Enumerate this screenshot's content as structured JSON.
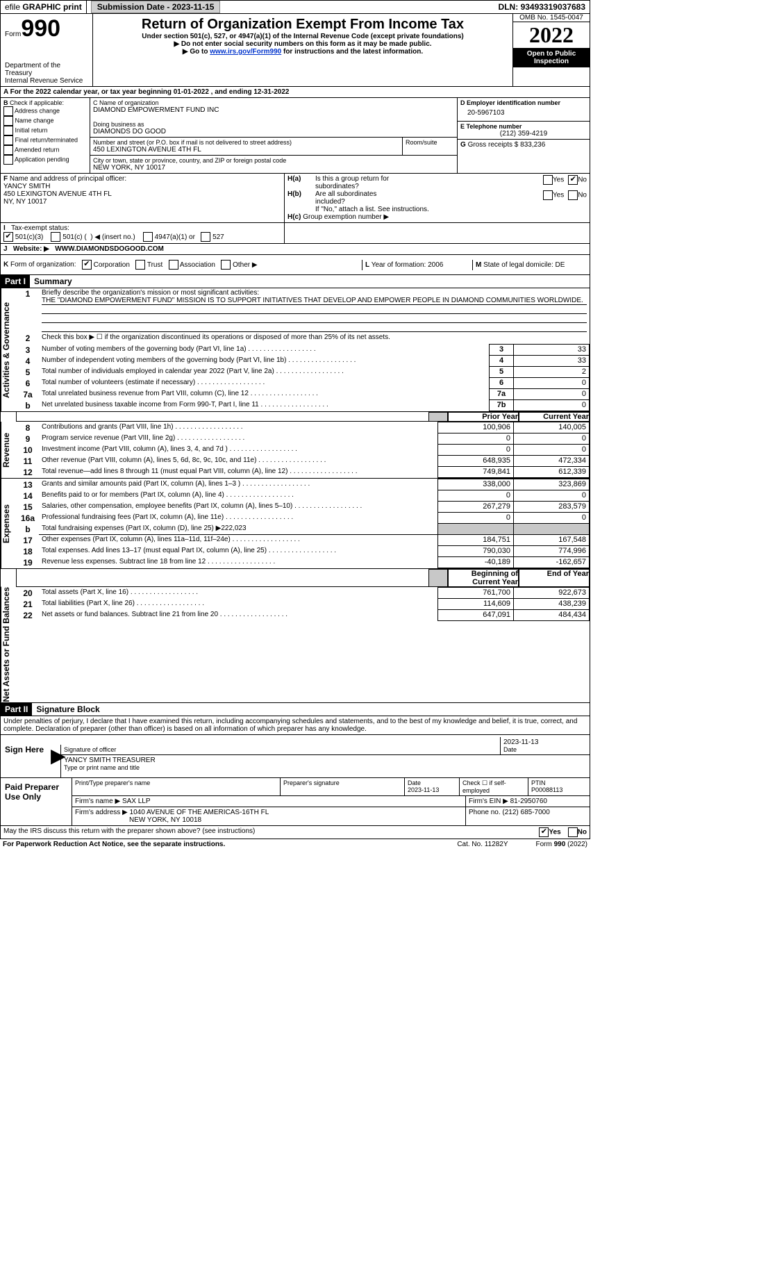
{
  "topbar": {
    "efile_prefix": "efile",
    "efile_graphic": "GRAPHIC",
    "print": "print",
    "sub_date_label": "Submission Date -",
    "sub_date": "2023-11-15",
    "dln_label": "DLN:",
    "dln": "93493319037683"
  },
  "header": {
    "form_word": "Form",
    "form_no": "990",
    "dept1": "Department of the Treasury",
    "dept2": "Internal Revenue Service",
    "title": "Return of Organization Exempt From Income Tax",
    "subtitle": "Under section 501(c), 527, or 4947(a)(1) of the Internal Revenue Code (except private foundations)",
    "note1": "▶ Do not enter social security numbers on this form as it may be made public.",
    "note2_pre": "▶ Go to ",
    "note2_link": "www.irs.gov/Form990",
    "note2_post": " for instructions and the latest information.",
    "omb": "OMB No. 1545-0047",
    "year": "2022",
    "open1": "Open to Public",
    "open2": "Inspection"
  },
  "periodA": {
    "prefix": "A",
    "text_pre": "For the 2022 calendar year, or tax year beginning ",
    "begin": "01-01-2022",
    "text_mid": " , and ending ",
    "end": "12-31-2022"
  },
  "boxB": {
    "label": "B",
    "check_label": "Check if applicable:",
    "items": [
      "Address change",
      "Name change",
      "Initial return",
      "Final return/terminated",
      "Amended return",
      "Application pending"
    ]
  },
  "boxC": {
    "name_label": "C Name of organization",
    "name": "DIAMOND EMPOWERMENT FUND INC",
    "dba_label": "Doing business as",
    "dba": "DIAMONDS DO GOOD",
    "street_label": "Number and street (or P.O. box if mail is not delivered to street address)",
    "street": "450 LEXINGTON AVENUE 4TH FL",
    "room_label": "Room/suite",
    "city_label": "City or town, state or province, country, and ZIP or foreign postal code",
    "city": "NEW YORK, NY  10017"
  },
  "boxD": {
    "label": "D Employer identification number",
    "value": "20-5967103"
  },
  "boxE": {
    "label": "E Telephone number",
    "value": "(212) 359-4219"
  },
  "boxG": {
    "label": "G",
    "text": "Gross receipts $",
    "value": "833,236"
  },
  "boxF": {
    "label": "F",
    "text": "Name and address of principal officer:",
    "name": "YANCY SMITH",
    "addr1": "450 LEXINGTON AVENUE 4TH FL",
    "addr2": "NY, NY  10017"
  },
  "boxH": {
    "ha_label": "H(a)",
    "ha_text1": "Is this a group return for",
    "ha_text2": "subordinates?",
    "hb_label": "H(b)",
    "hb_text1": "Are all subordinates",
    "hb_text2": "included?",
    "hb_note": "If \"No,\" attach a list. See instructions.",
    "hc_label": "H(c)",
    "hc_text": "Group exemption number ▶",
    "yes": "Yes",
    "no": "No"
  },
  "boxI": {
    "label": "I",
    "text": "Tax-exempt status:",
    "opt1": "501(c)(3)",
    "opt2_pre": "501(c) (",
    "opt2_mid": ") ◀",
    "opt2_post": "(insert no.)",
    "opt3": "4947(a)(1) or",
    "opt4": "527"
  },
  "boxJ": {
    "label": "J",
    "text": "Website: ▶",
    "value": "WWW.DIAMONDSDOGOOD.COM"
  },
  "boxK": {
    "label": "K",
    "text": "Form of organization:",
    "opts": [
      "Corporation",
      "Trust",
      "Association",
      "Other ▶"
    ]
  },
  "boxL": {
    "label": "L",
    "text": "Year of formation:",
    "value": "2006"
  },
  "boxM": {
    "label": "M",
    "text": "State of legal domicile:",
    "value": "DE"
  },
  "part1": {
    "num": "Part I",
    "title": "Summary"
  },
  "summary": {
    "q1_label": "1",
    "q1_text": "Briefly describe the organization's mission or most significant activities:",
    "q1_body": "THE \"DIAMOND EMPOWERMENT FUND\" MISSION IS TO SUPPORT INITIATIVES THAT DEVELOP AND EMPOWER PEOPLE IN DIAMOND COMMUNITIES WORLDWIDE.",
    "q2_label": "2",
    "q2_text": "Check this box ▶ ☐ if the organization discontinued its operations or disposed of more than 25% of its net assets.",
    "rows_ag": [
      {
        "n": "3",
        "t": "Number of voting members of the governing body (Part VI, line 1a)",
        "box": "3",
        "v": "33"
      },
      {
        "n": "4",
        "t": "Number of independent voting members of the governing body (Part VI, line 1b)",
        "box": "4",
        "v": "33"
      },
      {
        "n": "5",
        "t": "Total number of individuals employed in calendar year 2022 (Part V, line 2a)",
        "box": "5",
        "v": "2"
      },
      {
        "n": "6",
        "t": "Total number of volunteers (estimate if necessary)",
        "box": "6",
        "v": "0"
      },
      {
        "n": "7a",
        "t": "Total unrelated business revenue from Part VIII, column (C), line 12",
        "box": "7a",
        "v": "0"
      },
      {
        "n": "b",
        "t": "Net unrelated business taxable income from Form 990-T, Part I, line 11",
        "box": "7b",
        "v": "0"
      }
    ],
    "prior_label": "Prior Year",
    "current_label": "Current Year",
    "rows_rev": [
      {
        "n": "8",
        "t": "Contributions and grants (Part VIII, line 1h)",
        "p": "100,906",
        "c": "140,005"
      },
      {
        "n": "9",
        "t": "Program service revenue (Part VIII, line 2g)",
        "p": "0",
        "c": "0"
      },
      {
        "n": "10",
        "t": "Investment income (Part VIII, column (A), lines 3, 4, and 7d )",
        "p": "0",
        "c": "0"
      },
      {
        "n": "11",
        "t": "Other revenue (Part VIII, column (A), lines 5, 6d, 8c, 9c, 10c, and 11e)",
        "p": "648,935",
        "c": "472,334"
      },
      {
        "n": "12",
        "t": "Total revenue—add lines 8 through 11 (must equal Part VIII, column (A), line 12)",
        "p": "749,841",
        "c": "612,339"
      }
    ],
    "rows_exp": [
      {
        "n": "13",
        "t": "Grants and similar amounts paid (Part IX, column (A), lines 1–3 )",
        "p": "338,000",
        "c": "323,869"
      },
      {
        "n": "14",
        "t": "Benefits paid to or for members (Part IX, column (A), line 4)",
        "p": "0",
        "c": "0"
      },
      {
        "n": "15",
        "t": "Salaries, other compensation, employee benefits (Part IX, column (A), lines 5–10)",
        "p": "267,279",
        "c": "283,579"
      },
      {
        "n": "16a",
        "t": "Professional fundraising fees (Part IX, column (A), line 11e)",
        "p": "0",
        "c": "0"
      },
      {
        "n": "b",
        "t": "Total fundraising expenses (Part IX, column (D), line 25) ▶222,023",
        "shade": true
      },
      {
        "n": "17",
        "t": "Other expenses (Part IX, column (A), lines 11a–11d, 11f–24e)",
        "p": "184,751",
        "c": "167,548"
      },
      {
        "n": "18",
        "t": "Total expenses. Add lines 13–17 (must equal Part IX, column (A), line 25)",
        "p": "790,030",
        "c": "774,996"
      },
      {
        "n": "19",
        "t": "Revenue less expenses. Subtract line 18 from line 12",
        "p": "-40,189",
        "c": "-162,657"
      }
    ],
    "beg_label": "Beginning of Current Year",
    "end_label": "End of Year",
    "rows_na": [
      {
        "n": "20",
        "t": "Total assets (Part X, line 16)",
        "p": "761,700",
        "c": "922,673"
      },
      {
        "n": "21",
        "t": "Total liabilities (Part X, line 26)",
        "p": "114,609",
        "c": "438,239"
      },
      {
        "n": "22",
        "t": "Net assets or fund balances. Subtract line 21 from line 20",
        "p": "647,091",
        "c": "484,434"
      }
    ]
  },
  "sidelabels": {
    "ag": "Activities & Governance",
    "rev": "Revenue",
    "exp": "Expenses",
    "na": "Net Assets or Fund Balances"
  },
  "part2": {
    "num": "Part II",
    "title": "Signature Block"
  },
  "perjury": "Under penalties of perjury, I declare that I have examined this return, including accompanying schedules and statements, and to the best of my knowledge and belief, it is true, correct, and complete. Declaration of preparer (other than officer) is based on all information of which preparer has any knowledge.",
  "sign": {
    "here_label": "Sign Here",
    "sig_label": "Signature of officer",
    "date_label": "Date",
    "sig_date": "2023-11-13",
    "name_title": "YANCY SMITH  TREASURER",
    "name_label": "Type or print name and title"
  },
  "preparer": {
    "box_label": "Paid Preparer Use Only",
    "print_label": "Print/Type preparer's name",
    "sig_label": "Preparer's signature",
    "date_label": "Date",
    "date": "2023-11-13",
    "check_label": "Check ☐ if self-employed",
    "ptin_label": "PTIN",
    "ptin": "P00088113",
    "firm_label": "Firm's name      ▶",
    "firm": "SAX LLP",
    "ein_label": "Firm's EIN ▶",
    "ein": "81-2950760",
    "addr_label": "Firm's address ▶",
    "addr1": "1040 AVENUE OF THE AMERICAS-16TH FL",
    "addr2": "NEW YORK, NY  10018",
    "phone_label": "Phone no.",
    "phone": "(212) 685-7000"
  },
  "footer": {
    "discuss": "May the IRS discuss this return with the preparer shown above? (see instructions)",
    "yes": "Yes",
    "no": "No",
    "pra": "For Paperwork Reduction Act Notice, see the separate instructions.",
    "cat": "Cat. No. 11282Y",
    "form": "Form 990 (2022)"
  },
  "style": {
    "bg": "#ffffff",
    "link": "#0033cc",
    "black": "#000000",
    "gray_btn": "#d0d0d0",
    "gray_shade": "#c8c8c8"
  }
}
